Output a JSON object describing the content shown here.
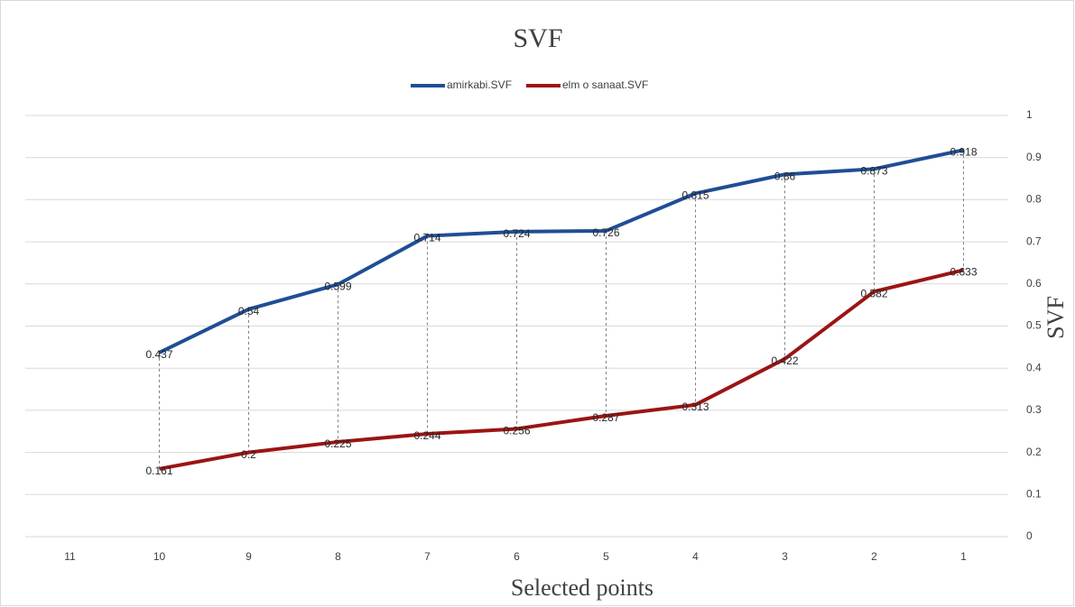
{
  "chart_data": {
    "type": "line",
    "title": "SVF",
    "x_label": "Selected points",
    "y_label": "SVF",
    "categories": [
      "11",
      "10",
      "9",
      "8",
      "7",
      "6",
      "5",
      "4",
      "3",
      "2",
      "1"
    ],
    "series": [
      {
        "name": "amirkabi.SVF",
        "color": "#1f4e96",
        "values": [
          null,
          0.437,
          0.54,
          0.599,
          0.714,
          0.724,
          0.726,
          0.815,
          0.86,
          0.873,
          0.918
        ]
      },
      {
        "name": "elm o sanaat.SVF",
        "color": "#9c1414",
        "values": [
          null,
          0.161,
          0.2,
          0.225,
          0.244,
          0.256,
          0.287,
          0.313,
          0.422,
          0.582,
          0.633
        ]
      }
    ],
    "ylim": [
      0,
      1
    ],
    "yticks": [
      0,
      0.1,
      0.2,
      0.3,
      0.4,
      0.5,
      0.6,
      0.7,
      0.8,
      0.9,
      1
    ],
    "y_axis_side": "right",
    "grid": true,
    "legend": "top",
    "data_labels": true,
    "high_low_lines": true
  }
}
